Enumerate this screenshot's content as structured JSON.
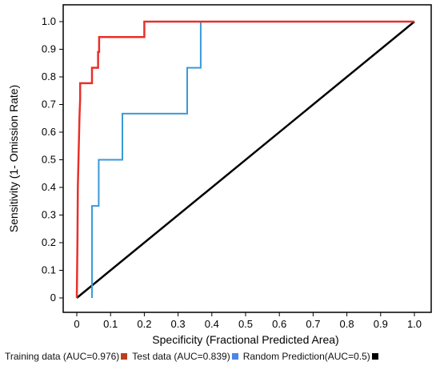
{
  "chart_data": {
    "type": "line",
    "xlabel": "Specificity (Fractional Predicted Area)",
    "ylabel": "Sensitivity (1- Omission Rate)",
    "xlim": [
      0,
      1
    ],
    "ylim": [
      0,
      1
    ],
    "xticks": [
      "0",
      "0.1",
      "0.2",
      "0.3",
      "0.4",
      "0.5",
      "0.6",
      "0.7",
      "0.8",
      "0.9",
      "1.0"
    ],
    "yticks": [
      "0",
      "0.1",
      "0.2",
      "0.3",
      "0.4",
      "0.5",
      "0.6",
      "0.7",
      "0.8",
      "0.9",
      "1.0"
    ],
    "grid": false,
    "legend_position": "bottom",
    "series": [
      {
        "name": "Training data (AUC=0.976)",
        "color": "#e8302a",
        "x": [
          0,
          0.002,
          0.003,
          0.005,
          0.006,
          0.008,
          0.01,
          0.01,
          0.045,
          0.045,
          0.063,
          0.063,
          0.066,
          0.066,
          0.2,
          0.2,
          1.0
        ],
        "y": [
          0,
          0.2,
          0.4,
          0.5,
          0.55,
          0.66,
          0.72,
          0.777,
          0.777,
          0.833,
          0.833,
          0.89,
          0.89,
          0.944,
          0.944,
          1.0,
          1.0
        ]
      },
      {
        "name": "Test data (AUC=0.839)",
        "color": "#3a9ad9",
        "x": [
          0.045,
          0.045,
          0.065,
          0.065,
          0.135,
          0.135,
          0.327,
          0.327,
          0.367,
          0.367,
          1.0
        ],
        "y": [
          0,
          0.333,
          0.333,
          0.5,
          0.5,
          0.667,
          0.667,
          0.833,
          0.833,
          1.0,
          1.0
        ]
      },
      {
        "name": "Random Prediction(AUC=0.5)",
        "color": "#000000",
        "x": [
          0,
          1
        ],
        "y": [
          0,
          1
        ]
      }
    ],
    "legend_markers": [
      "#b8401e",
      "#4a86e8",
      "#000000"
    ]
  }
}
